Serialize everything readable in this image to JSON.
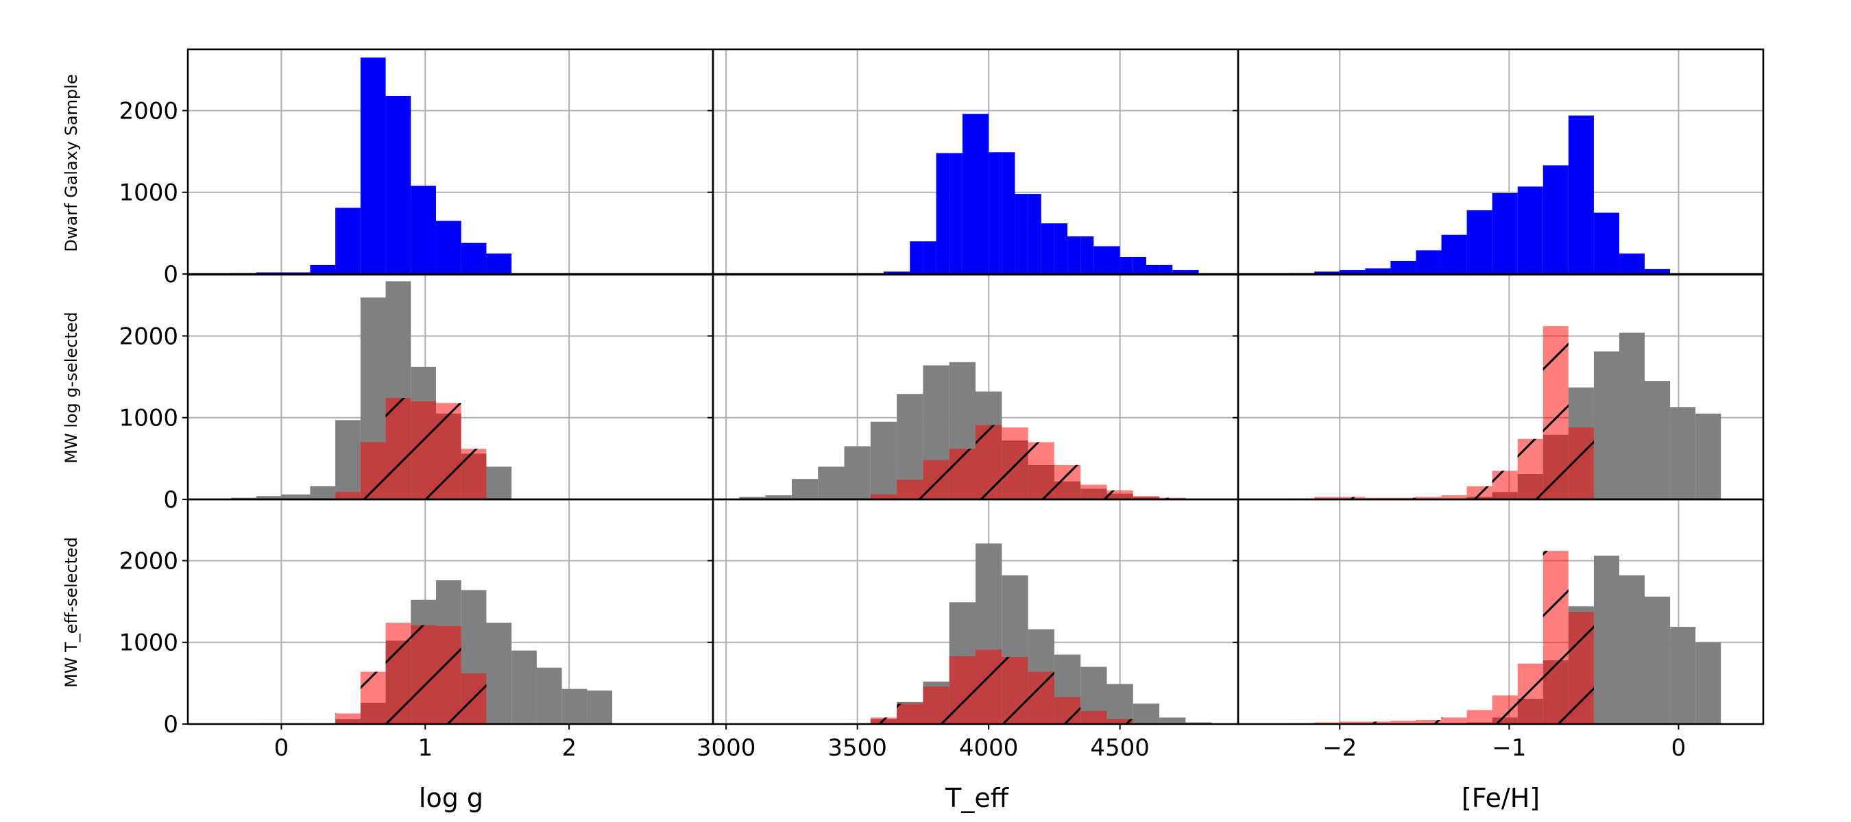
{
  "figure": {
    "row_labels": [
      "Dwarf Galaxy Sample",
      "MW log g-selected",
      "MW T_eff-selected"
    ],
    "column_xlabels": [
      "log g",
      "T_eff",
      "[Fe/H]"
    ]
  },
  "chart_data": [
    {
      "type": "bar",
      "panel": "row1-col1",
      "row_label": "Dwarf Galaxy Sample",
      "xlabel": "log g",
      "xlim": [
        -0.65,
        3.0
      ],
      "ylim": [
        0,
        2750
      ],
      "xticks": [
        0,
        1,
        2
      ],
      "xtick_labels": [
        "0",
        "1",
        "2"
      ],
      "yticks": [
        0,
        1000,
        2000
      ],
      "ytick_labels": [
        "0",
        "1000",
        "2000"
      ],
      "grid": true,
      "bin_edges": [
        -0.35,
        -0.175,
        0.0,
        0.2,
        0.375,
        0.55,
        0.725,
        0.9,
        1.075,
        1.25,
        1.425,
        1.6
      ],
      "series": [
        {
          "color": "#0000ff",
          "hatch": false,
          "alpha": 1.0,
          "values": [
            10,
            20,
            20,
            110,
            810,
            2650,
            2180,
            1080,
            650,
            380,
            250
          ]
        }
      ]
    },
    {
      "type": "bar",
      "panel": "row1-col2",
      "row_label": "Dwarf Galaxy Sample",
      "xlabel": "T_eff",
      "xlim": [
        2950,
        4950
      ],
      "ylim": [
        0,
        2750
      ],
      "xticks": [
        3000,
        3500,
        4000,
        4500
      ],
      "xtick_labels": [
        "3000",
        "3500",
        "4000",
        "4500"
      ],
      "yticks": [
        0,
        1000,
        2000
      ],
      "ytick_labels": [
        "0",
        "1000",
        "2000"
      ],
      "grid": true,
      "bin_edges": [
        3600,
        3650,
        3700,
        3750,
        3800,
        3850,
        3900,
        3950,
        4000,
        4050,
        4100,
        4150,
        4200,
        4250,
        4300,
        4350,
        4400,
        4450,
        4500,
        4550,
        4600,
        4650,
        4700,
        4750,
        4800
      ],
      "series": [
        {
          "color": "#0000ff",
          "hatch": false,
          "alpha": 1.0,
          "values": [
            30,
            30,
            400,
            400,
            1480,
            1480,
            1960,
            1960,
            1490,
            1490,
            980,
            980,
            620,
            620,
            460,
            460,
            340,
            340,
            210,
            210,
            110,
            110,
            50,
            50
          ]
        }
      ]
    },
    {
      "type": "bar",
      "panel": "row1-col3",
      "row_label": "Dwarf Galaxy Sample",
      "xlabel": "[Fe/H]",
      "xlim": [
        -2.6,
        0.5
      ],
      "ylim": [
        0,
        2750
      ],
      "xticks": [
        -2,
        -1,
        0
      ],
      "xtick_labels": [
        "−2",
        "−1",
        "0"
      ],
      "yticks": [
        0,
        1000,
        2000
      ],
      "ytick_labels": [
        "0",
        "1000",
        "2000"
      ],
      "grid": true,
      "bin_edges": [
        -2.3,
        -2.15,
        -2.0,
        -1.85,
        -1.7,
        -1.55,
        -1.4,
        -1.25,
        -1.1,
        -0.95,
        -0.8,
        -0.65,
        -0.5,
        -0.35,
        -0.2,
        -0.05
      ],
      "series": [
        {
          "color": "#0000ff",
          "hatch": false,
          "alpha": 1.0,
          "values": [
            10,
            30,
            50,
            70,
            160,
            290,
            480,
            780,
            990,
            1070,
            1330,
            1940,
            750,
            250,
            60
          ]
        }
      ]
    },
    {
      "type": "bar",
      "panel": "row2-col1",
      "row_label": "MW log g-selected",
      "xlabel": "log g",
      "xlim": [
        -0.65,
        3.0
      ],
      "ylim": [
        0,
        2750
      ],
      "xticks": [
        0,
        1,
        2
      ],
      "xtick_labels": [
        "0",
        "1",
        "2"
      ],
      "yticks": [
        0,
        1000,
        2000
      ],
      "ytick_labels": [
        "0",
        "1000",
        "2000"
      ],
      "grid": true,
      "bin_edges": [
        -0.35,
        -0.175,
        0.0,
        0.2,
        0.375,
        0.55,
        0.725,
        0.9,
        1.075,
        1.25,
        1.425,
        1.6
      ],
      "series": [
        {
          "color": "#808080",
          "hatch": false,
          "alpha": 1.0,
          "values": [
            20,
            40,
            60,
            160,
            970,
            2470,
            2670,
            1620,
            1050,
            560,
            400
          ]
        },
        {
          "color": "#ff0000",
          "hatch": true,
          "alpha": 0.5,
          "values": [
            0,
            0,
            0,
            0,
            90,
            700,
            1240,
            1200,
            1180,
            620,
            0
          ]
        }
      ]
    },
    {
      "type": "bar",
      "panel": "row2-col2",
      "row_label": "MW log g-selected",
      "xlabel": "T_eff",
      "xlim": [
        2950,
        4950
      ],
      "ylim": [
        0,
        2750
      ],
      "xticks": [
        3000,
        3500,
        4000,
        4500
      ],
      "xtick_labels": [
        "3000",
        "3500",
        "4000",
        "4500"
      ],
      "yticks": [
        0,
        1000,
        2000
      ],
      "ytick_labels": [
        "0",
        "1000",
        "2000"
      ],
      "grid": true,
      "bin_edges": [
        3050,
        3150,
        3250,
        3350,
        3450,
        3550,
        3650,
        3750,
        3850,
        3950,
        4050,
        4150,
        4250,
        4350,
        4450,
        4550,
        4650,
        4750
      ],
      "series": [
        {
          "color": "#808080",
          "hatch": false,
          "alpha": 1.0,
          "values": [
            30,
            50,
            250,
            400,
            650,
            950,
            1290,
            1640,
            1680,
            1320,
            720,
            420,
            220,
            130,
            70,
            30,
            10
          ]
        },
        {
          "color": "#ff0000",
          "hatch": true,
          "alpha": 0.5,
          "values": [
            0,
            0,
            0,
            0,
            0,
            60,
            240,
            480,
            620,
            910,
            880,
            700,
            420,
            180,
            110,
            40,
            20
          ]
        }
      ]
    },
    {
      "type": "bar",
      "panel": "row2-col3",
      "row_label": "MW log g-selected",
      "xlabel": "[Fe/H]",
      "xlim": [
        -2.6,
        0.5
      ],
      "ylim": [
        0,
        2750
      ],
      "xticks": [
        -2,
        -1,
        0
      ],
      "xtick_labels": [
        "−2",
        "−1",
        "0"
      ],
      "yticks": [
        0,
        1000,
        2000
      ],
      "ytick_labels": [
        "0",
        "1000",
        "2000"
      ],
      "grid": true,
      "bin_edges": [
        -2.3,
        -2.15,
        -2.0,
        -1.85,
        -1.7,
        -1.55,
        -1.4,
        -1.25,
        -1.1,
        -0.95,
        -0.8,
        -0.65,
        -0.5,
        -0.35,
        -0.2,
        -0.05,
        0.1,
        0.25
      ],
      "series": [
        {
          "color": "#808080",
          "hatch": false,
          "alpha": 1.0,
          "values": [
            0,
            0,
            0,
            0,
            0,
            0,
            10,
            30,
            90,
            310,
            790,
            1370,
            1810,
            2040,
            1450,
            1130,
            1050
          ]
        },
        {
          "color": "#ff0000",
          "hatch": true,
          "alpha": 0.5,
          "values": [
            10,
            30,
            30,
            20,
            20,
            30,
            50,
            160,
            350,
            740,
            2120,
            880,
            0,
            0,
            0,
            0,
            0
          ]
        }
      ]
    },
    {
      "type": "bar",
      "panel": "row3-col1",
      "row_label": "MW T_eff-selected",
      "xlabel": "log g",
      "xlim": [
        -0.65,
        3.0
      ],
      "ylim": [
        0,
        2750
      ],
      "xticks": [
        0,
        1,
        2
      ],
      "xtick_labels": [
        "0",
        "1",
        "2"
      ],
      "yticks": [
        0,
        1000,
        2000
      ],
      "ytick_labels": [
        "0",
        "1000",
        "2000"
      ],
      "grid": true,
      "bin_edges": [
        -0.15,
        0.2,
        0.375,
        0.55,
        0.725,
        0.9,
        1.075,
        1.25,
        1.425,
        1.6,
        1.775,
        1.95,
        2.125,
        2.3
      ],
      "series": [
        {
          "color": "#808080",
          "hatch": false,
          "alpha": 1.0,
          "values": [
            10,
            0,
            60,
            260,
            1020,
            1520,
            1760,
            1640,
            1240,
            900,
            690,
            430,
            410
          ]
        },
        {
          "color": "#ff0000",
          "hatch": true,
          "alpha": 0.5,
          "values": [
            0,
            0,
            130,
            640,
            1240,
            1210,
            1200,
            620,
            0,
            0,
            0,
            0,
            0
          ]
        }
      ]
    },
    {
      "type": "bar",
      "panel": "row3-col2",
      "row_label": "MW T_eff-selected",
      "xlabel": "T_eff",
      "xlim": [
        2950,
        4950
      ],
      "ylim": [
        0,
        2750
      ],
      "xticks": [
        3000,
        3500,
        4000,
        4500
      ],
      "xtick_labels": [
        "3000",
        "3500",
        "4000",
        "4500"
      ],
      "yticks": [
        0,
        1000,
        2000
      ],
      "ytick_labels": [
        "0",
        "1000",
        "2000"
      ],
      "grid": true,
      "bin_edges": [
        3450,
        3550,
        3650,
        3750,
        3850,
        3950,
        4050,
        4150,
        4250,
        4350,
        4450,
        4550,
        4650,
        4750,
        4850
      ],
      "series": [
        {
          "color": "#808080",
          "hatch": false,
          "alpha": 1.0,
          "values": [
            10,
            60,
            270,
            520,
            1490,
            2210,
            1820,
            1160,
            850,
            700,
            490,
            250,
            80,
            20
          ]
        },
        {
          "color": "#ff0000",
          "hatch": true,
          "alpha": 0.5,
          "values": [
            0,
            80,
            250,
            460,
            830,
            910,
            820,
            640,
            330,
            160,
            60,
            10,
            0,
            0
          ]
        }
      ]
    },
    {
      "type": "bar",
      "panel": "row3-col3",
      "row_label": "MW T_eff-selected",
      "xlabel": "[Fe/H]",
      "xlim": [
        -2.6,
        0.5
      ],
      "ylim": [
        0,
        2750
      ],
      "xticks": [
        -2,
        -1,
        0
      ],
      "xtick_labels": [
        "−2",
        "−1",
        "0"
      ],
      "yticks": [
        0,
        1000,
        2000
      ],
      "ytick_labels": [
        "0",
        "1000",
        "2000"
      ],
      "grid": true,
      "bin_edges": [
        -2.3,
        -2.15,
        -2.0,
        -1.85,
        -1.7,
        -1.55,
        -1.4,
        -1.25,
        -1.1,
        -0.95,
        -0.8,
        -0.65,
        -0.5,
        -0.35,
        -0.2,
        -0.05,
        0.1,
        0.25
      ],
      "series": [
        {
          "color": "#808080",
          "hatch": false,
          "alpha": 1.0,
          "values": [
            0,
            0,
            0,
            0,
            0,
            0,
            10,
            20,
            80,
            310,
            780,
            1440,
            2060,
            1820,
            1560,
            1190,
            1000
          ]
        },
        {
          "color": "#ff0000",
          "hatch": true,
          "alpha": 0.5,
          "values": [
            10,
            20,
            30,
            30,
            40,
            50,
            80,
            170,
            350,
            740,
            2120,
            1370,
            0,
            0,
            0,
            0,
            0
          ]
        }
      ]
    }
  ]
}
